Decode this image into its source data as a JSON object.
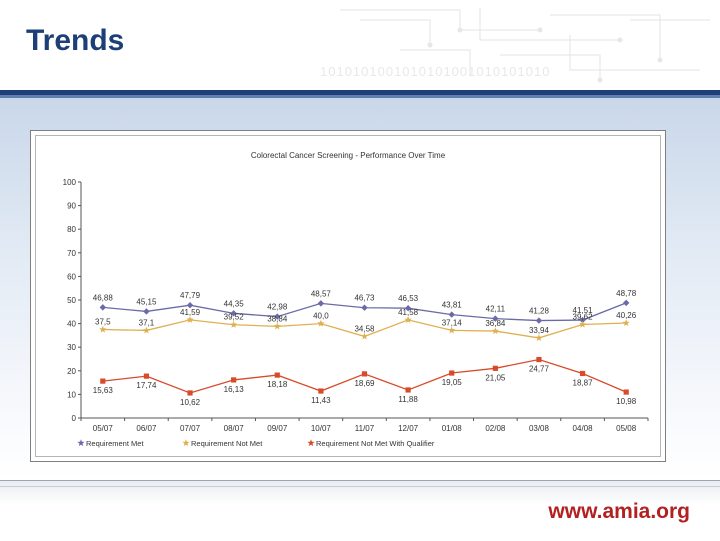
{
  "slide": {
    "title": "Trends",
    "footer_url": "www.amia.org"
  },
  "colors": {
    "header_band": "#1f3f7a",
    "title_text": "#1d3f78",
    "footer_text": "#b32020",
    "series_met": "#6a6aa8",
    "series_not_met": "#e0b050",
    "series_qualifier": "#d84a2a"
  },
  "chart_data": {
    "type": "line",
    "title": "Colorectal Cancer Screening - Performance Over Time",
    "xlabel": "",
    "ylabel": "",
    "ylim": [
      0,
      100
    ],
    "yticks": [
      0,
      10,
      20,
      30,
      40,
      50,
      60,
      70,
      80,
      90,
      100
    ],
    "grid": false,
    "legend_position": "bottom-left",
    "categories": [
      "05/07",
      "06/07",
      "07/07",
      "08/07",
      "09/07",
      "10/07",
      "11/07",
      "12/07",
      "01/08",
      "02/08",
      "03/08",
      "04/08",
      "05/08"
    ],
    "series": [
      {
        "name": "Requirement Met",
        "color": "#6a6aa8",
        "marker": "diamond",
        "values": [
          46.88,
          45.15,
          47.79,
          44.35,
          42.98,
          48.57,
          46.73,
          46.53,
          43.81,
          42.11,
          41.28,
          41.51,
          48.78
        ],
        "labels": [
          "46,88",
          "45,15",
          "47,79",
          "44,35",
          "42,98",
          "48,57",
          "46,73",
          "46,53",
          "43,81",
          "42,11",
          "41,28",
          "41,51",
          "48,78"
        ]
      },
      {
        "name": "Requirement Not Met",
        "color": "#e0b050",
        "marker": "star",
        "values": [
          37.5,
          37.1,
          41.59,
          39.52,
          38.84,
          40.0,
          34.58,
          41.58,
          37.14,
          36.84,
          33.94,
          39.62,
          40.26
        ],
        "labels": [
          "37,5",
          "37,1",
          "41,59",
          "39,52",
          "38,84",
          "40,0",
          "34,58",
          "41,58",
          "37,14",
          "36,84",
          "33,94",
          "39,62",
          "40,26"
        ]
      },
      {
        "name": "Requirement Not Met With Qualifier",
        "color": "#d84a2a",
        "marker": "square",
        "values": [
          15.63,
          17.74,
          10.62,
          16.13,
          18.18,
          11.43,
          18.69,
          11.88,
          19.05,
          21.05,
          24.77,
          18.87,
          10.98
        ],
        "labels": [
          "15,63",
          "17,74",
          "10,62",
          "16,13",
          "18,18",
          "11,43",
          "18,69",
          "11,88",
          "19,05",
          "21,05",
          "24,77",
          "18,87",
          "10,98"
        ]
      }
    ]
  }
}
